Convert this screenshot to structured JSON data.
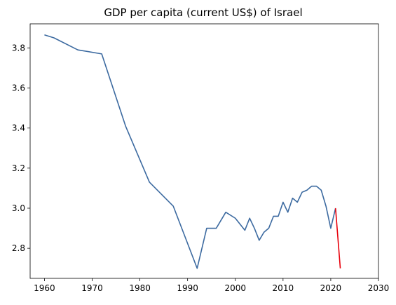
{
  "chart_data": {
    "type": "line",
    "title": "GDP per capita (current US$) of Israel",
    "xlabel": "",
    "ylabel": "",
    "xlim": [
      1957,
      2030
    ],
    "ylim": [
      2.65,
      3.92
    ],
    "xticks": [
      1960,
      1970,
      1980,
      1990,
      2000,
      2010,
      2020,
      2030
    ],
    "yticks": [
      2.8,
      3.0,
      3.2,
      3.4,
      3.6,
      3.8
    ],
    "ytick_labels": [
      "2.8",
      "3.0",
      "3.2",
      "3.4",
      "3.6",
      "3.8"
    ],
    "grid": false,
    "series": [
      {
        "color": "#3c6aa0",
        "x": [
          1960,
          1962,
          1967,
          1972,
          1977,
          1982,
          1987,
          1992,
          1994,
          1996,
          1998,
          2000,
          2002,
          2003,
          2004,
          2005,
          2006,
          2007,
          2008,
          2009,
          2010,
          2011,
          2012,
          2013,
          2014,
          2015,
          2016,
          2017,
          2018,
          2019,
          2020,
          2021
        ],
        "y": [
          3.865,
          3.85,
          3.79,
          3.77,
          3.41,
          3.13,
          3.01,
          2.7,
          2.9,
          2.9,
          2.98,
          2.95,
          2.89,
          2.95,
          2.9,
          2.84,
          2.88,
          2.9,
          2.96,
          2.96,
          3.03,
          2.98,
          3.05,
          3.03,
          3.08,
          3.09,
          3.11,
          3.11,
          3.09,
          3.01,
          2.9,
          3.0
        ]
      },
      {
        "color": "#e8000b",
        "x": [
          2021,
          2022
        ],
        "y": [
          3.0,
          2.7
        ]
      }
    ]
  }
}
